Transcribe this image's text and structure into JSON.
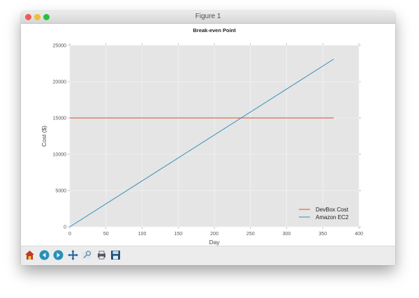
{
  "window": {
    "title": "Figure 1"
  },
  "toolbar": {
    "buttons": [
      {
        "name": "home-icon"
      },
      {
        "name": "back-icon"
      },
      {
        "name": "forward-icon"
      },
      {
        "name": "pan-icon"
      },
      {
        "name": "zoom-icon"
      },
      {
        "name": "configure-subplots-icon"
      },
      {
        "name": "save-icon"
      }
    ]
  },
  "chart_data": {
    "type": "line",
    "title": "Break-even Point",
    "xlabel": "Day",
    "ylabel": "Cost ($)",
    "xlim": [
      0,
      400
    ],
    "ylim": [
      0,
      25000
    ],
    "xticks": [
      0,
      50,
      100,
      150,
      200,
      250,
      300,
      350,
      400
    ],
    "yticks": [
      0,
      5000,
      10000,
      15000,
      20000,
      25000
    ],
    "grid": true,
    "legend_position": "lower right",
    "series": [
      {
        "name": "DevBox Cost",
        "color": "#e24a33",
        "x": [
          0,
          365
        ],
        "y": [
          15000,
          15000
        ]
      },
      {
        "name": "Amazon EC2",
        "color": "#348abd",
        "x": [
          0,
          365
        ],
        "y": [
          0,
          23100
        ]
      }
    ],
    "annotations": {
      "break_even_day": 237
    }
  }
}
